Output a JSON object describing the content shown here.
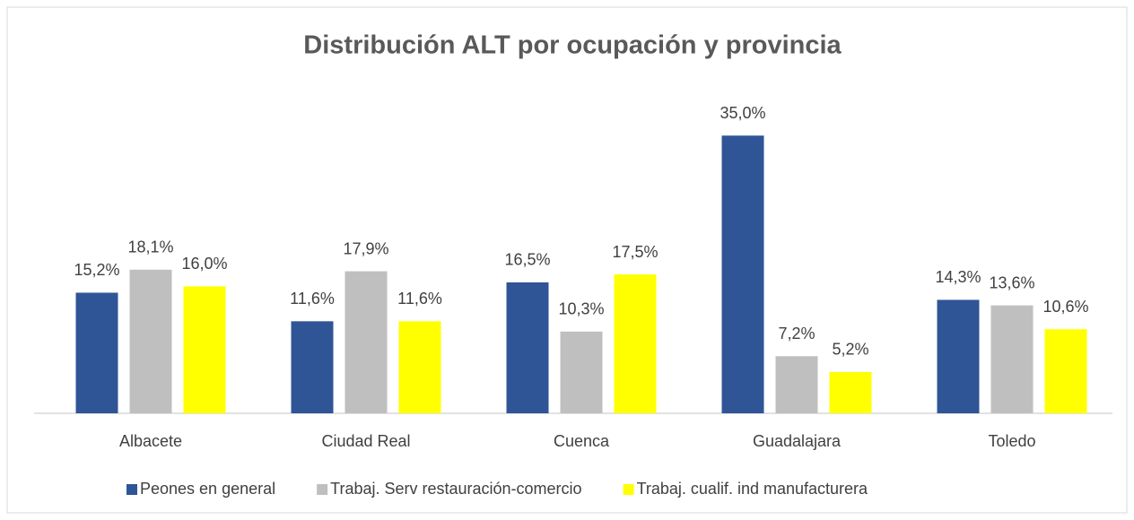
{
  "chart_data": {
    "type": "bar",
    "title": "Distribución ALT por ocupación y provincia",
    "categories": [
      "Albacete",
      "Ciudad Real",
      "Cuenca",
      "Guadalajara",
      "Toledo"
    ],
    "series": [
      {
        "name": "Peones en general",
        "color": "#2f5597",
        "values": [
          15.2,
          11.6,
          16.5,
          35.0,
          14.3
        ],
        "value_labels": [
          "15,2%",
          "11,6%",
          "16,5%",
          "35,0%",
          "14,3%"
        ]
      },
      {
        "name": "Trabaj. Serv restauración-comercio",
        "color": "#bfbfbf",
        "values": [
          18.1,
          17.9,
          10.3,
          7.2,
          13.6
        ],
        "value_labels": [
          "18,1%",
          "17,9%",
          "10,3%",
          "7,2%",
          "13,6%"
        ]
      },
      {
        "name": "Trabaj. cualif. ind manufacturera",
        "color": "#ffff00",
        "values": [
          16.0,
          11.6,
          17.5,
          5.2,
          10.6
        ],
        "value_labels": [
          "16,0%",
          "11,6%",
          "17,5%",
          "5,2%",
          "10,6%"
        ]
      }
    ],
    "ylim": [
      0,
      40
    ],
    "legend": "bottom"
  }
}
